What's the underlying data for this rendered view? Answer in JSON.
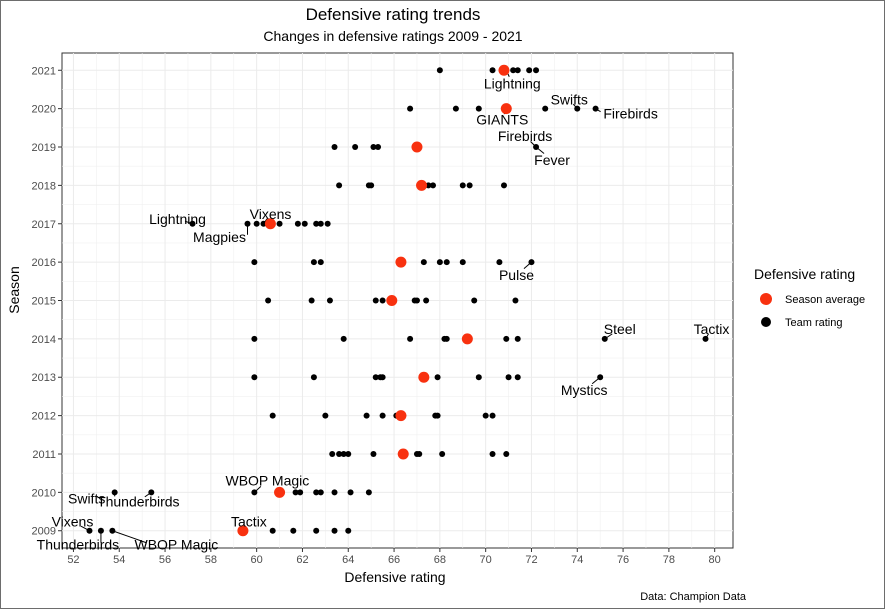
{
  "chart_data": {
    "type": "scatter",
    "title": "Defensive rating trends",
    "subtitle": "Changes in defensive ratings 2009 - 2021",
    "xlabel": "Defensive rating",
    "ylabel": "Season",
    "caption": "Data: Champion Data",
    "xlim": [
      51.5,
      80.8
    ],
    "ylim": [
      2008.55,
      2021.45
    ],
    "x_ticks": [
      52,
      54,
      56,
      58,
      60,
      62,
      64,
      66,
      68,
      70,
      72,
      74,
      76,
      78,
      80
    ],
    "y_ticks": [
      2009,
      2010,
      2011,
      2012,
      2013,
      2014,
      2015,
      2016,
      2017,
      2018,
      2019,
      2020,
      2021
    ],
    "legend": {
      "title": "Defensive rating",
      "position": "right",
      "entries": [
        {
          "label": "Season average",
          "color": "#f8310f"
        },
        {
          "label": "Team rating",
          "color": "#000000"
        }
      ]
    },
    "colors": {
      "average": "#f8310f",
      "team": "#000000"
    },
    "series": [
      {
        "name": "Season average",
        "points": [
          {
            "season": 2009,
            "x": 59.4
          },
          {
            "season": 2010,
            "x": 61.0
          },
          {
            "season": 2011,
            "x": 66.4
          },
          {
            "season": 2012,
            "x": 66.3
          },
          {
            "season": 2013,
            "x": 67.3
          },
          {
            "season": 2014,
            "x": 69.2
          },
          {
            "season": 2015,
            "x": 65.9
          },
          {
            "season": 2016,
            "x": 66.3
          },
          {
            "season": 2017,
            "x": 60.6
          },
          {
            "season": 2018,
            "x": 67.2
          },
          {
            "season": 2019,
            "x": 67.0
          },
          {
            "season": 2020,
            "x": 70.9
          },
          {
            "season": 2021,
            "x": 70.8
          }
        ]
      },
      {
        "name": "Team rating",
        "points": [
          {
            "season": 2009,
            "values": [
              52.7,
              53.2,
              53.7,
              59.4,
              60.7,
              61.6,
              62.6,
              63.4,
              64.0
            ]
          },
          {
            "season": 2010,
            "values": [
              53.8,
              55.4,
              59.9,
              61.7,
              61.9,
              62.6,
              62.8,
              63.4,
              64.1,
              64.9
            ]
          },
          {
            "season": 2011,
            "values": [
              63.3,
              63.6,
              63.8,
              64.0,
              65.1,
              66.3,
              67.0,
              67.1,
              68.1,
              70.3,
              70.9
            ]
          },
          {
            "season": 2012,
            "values": [
              60.7,
              63.0,
              64.8,
              65.5,
              66.1,
              66.4,
              67.8,
              67.9,
              70.0,
              70.3
            ]
          },
          {
            "season": 2013,
            "values": [
              59.9,
              62.5,
              65.2,
              65.4,
              65.5,
              67.9,
              69.7,
              71.0,
              71.4,
              75.0
            ]
          },
          {
            "season": 2014,
            "values": [
              59.9,
              63.8,
              66.7,
              68.2,
              68.3,
              70.9,
              71.4,
              75.2,
              79.6
            ]
          },
          {
            "season": 2015,
            "values": [
              60.5,
              62.4,
              63.2,
              65.2,
              65.5,
              66.9,
              67.0,
              67.4,
              69.5,
              71.3
            ]
          },
          {
            "season": 2016,
            "values": [
              59.9,
              62.5,
              62.8,
              67.3,
              68.0,
              68.3,
              69.0,
              70.6,
              72.0
            ]
          },
          {
            "season": 2017,
            "values": [
              57.2,
              59.6,
              60.0,
              60.3,
              61.0,
              61.8,
              62.1,
              62.6,
              62.8,
              63.1
            ]
          },
          {
            "season": 2018,
            "values": [
              63.6,
              64.9,
              65.0,
              67.2,
              67.5,
              67.7,
              69.0,
              69.3,
              70.8
            ]
          },
          {
            "season": 2019,
            "values": [
              63.4,
              64.3,
              65.1,
              65.3,
              66.9,
              67.0,
              72.2
            ]
          },
          {
            "season": 2020,
            "values": [
              66.7,
              68.7,
              69.7,
              70.9,
              71.0,
              72.6,
              74.0,
              74.8
            ]
          },
          {
            "season": 2021,
            "values": [
              68.0,
              70.3,
              70.7,
              70.9,
              71.2,
              71.4,
              71.9,
              72.2
            ]
          }
        ]
      }
    ],
    "annotations": [
      {
        "text": "Lightning",
        "x": 70.9,
        "season": 2021
      },
      {
        "text": "GIANTS",
        "x": 70.9,
        "season": 2020
      },
      {
        "text": "Swifts",
        "x": 74.0,
        "season": 2020
      },
      {
        "text": "Firebirds",
        "x": 74.8,
        "season": 2020
      },
      {
        "text": "Firebirds",
        "x": 72.2,
        "season": 2019
      },
      {
        "text": "Fever",
        "x": 72.2,
        "season": 2019
      },
      {
        "text": "Lightning",
        "x": 57.2,
        "season": 2017
      },
      {
        "text": "Vixens",
        "x": 60.3,
        "season": 2017
      },
      {
        "text": "Magpies",
        "x": 59.6,
        "season": 2017
      },
      {
        "text": "Pulse",
        "x": 72.0,
        "season": 2016
      },
      {
        "text": "Steel",
        "x": 75.2,
        "season": 2014
      },
      {
        "text": "Tactix",
        "x": 79.6,
        "season": 2014
      },
      {
        "text": "Mystics",
        "x": 75.0,
        "season": 2013
      },
      {
        "text": "WBOP Magic",
        "x": 59.9,
        "season": 2010
      },
      {
        "text": "Swifts",
        "x": 53.8,
        "season": 2010
      },
      {
        "text": "Thunderbirds",
        "x": 55.4,
        "season": 2010
      },
      {
        "text": "Vixens",
        "x": 52.7,
        "season": 2009
      },
      {
        "text": "Tactix",
        "x": 59.4,
        "season": 2009
      },
      {
        "text": "Thunderbirds",
        "x": 53.2,
        "season": 2009
      },
      {
        "text": "WBOP Magic",
        "x": 53.7,
        "season": 2009
      }
    ]
  }
}
